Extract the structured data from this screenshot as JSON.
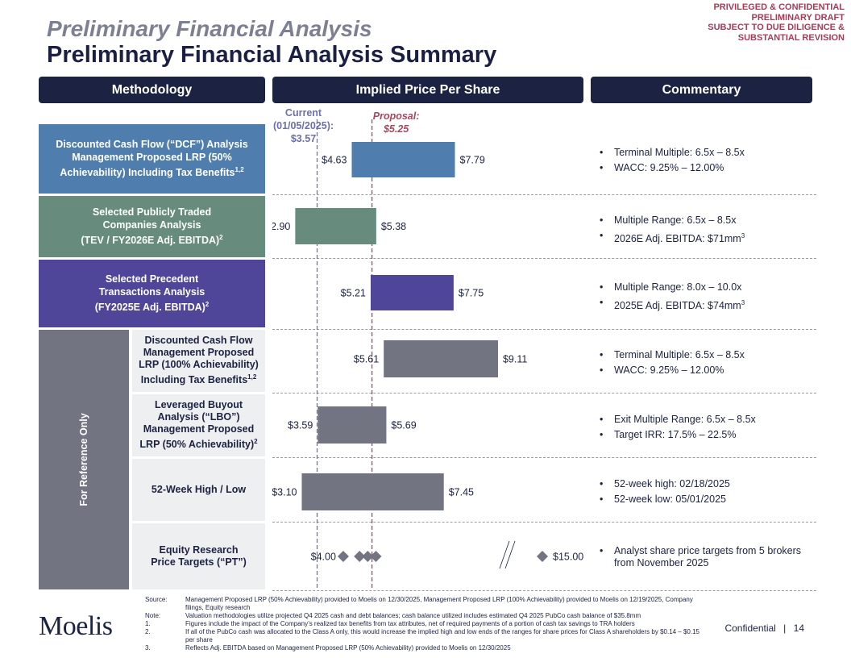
{
  "header": {
    "title_italic": "Preliminary Financial Analysis",
    "title_main": "Preliminary Financial Analysis Summary",
    "confidential": [
      "PRIVILEGED & CONFIDENTIAL",
      "PRELIMINARY DRAFT",
      "SUBJECT TO DUE DILIGENCE &",
      "SUBSTANTIAL REVISION"
    ]
  },
  "columns": {
    "methodology": "Methodology",
    "price": "Implied Price Per Share",
    "commentary": "Commentary"
  },
  "reference_label": "For Reference Only",
  "chart_data": {
    "type": "bar",
    "subtype": "football-field (floating horizontal bars)",
    "title": "Implied Price Per Share",
    "units": "$ per share",
    "xlim": [
      2.2,
      9.9
    ],
    "reference_lines": [
      {
        "name": "Current",
        "label": [
          "Current",
          "(01/05/2025):",
          "$3.57"
        ],
        "value": 3.57,
        "color": "#6d6fae"
      },
      {
        "name": "Proposal",
        "label": [
          "Proposal:",
          "$5.25"
        ],
        "value": 5.25,
        "color": "#a8465e"
      }
    ],
    "rows": [
      {
        "name": "DCF 50%",
        "low": 4.63,
        "high": 7.79,
        "low_label": "$4.63",
        "high_label": "$7.79",
        "color": "#4f7eae"
      },
      {
        "name": "Trading Comps",
        "low": 2.9,
        "high": 5.38,
        "low_label": "$2.90",
        "high_label": "$5.38",
        "color": "#678c7e"
      },
      {
        "name": "Precedent Transactions",
        "low": 5.21,
        "high": 7.75,
        "low_label": "$5.21",
        "high_label": "$7.75",
        "color": "#4f469a"
      },
      {
        "name": "DCF 100%",
        "low": 5.61,
        "high": 9.11,
        "low_label": "$5.61",
        "high_label": "$9.11",
        "color": "#727482"
      },
      {
        "name": "LBO",
        "low": 3.59,
        "high": 5.69,
        "low_label": "$3.59",
        "high_label": "$5.69",
        "color": "#727482"
      },
      {
        "name": "52-Week",
        "low": 3.1,
        "high": 7.45,
        "low_label": "$3.10",
        "high_label": "$7.45",
        "color": "#727482"
      }
    ],
    "price_targets": {
      "low": 4.0,
      "high": 15.0,
      "low_label": "$4.00",
      "high_label": "$15.00",
      "points": [
        4.0,
        4.5,
        4.75,
        5.0,
        15.0
      ],
      "color": "#727482",
      "axis_break": true
    }
  },
  "methodologies": [
    {
      "lines": [
        "Discounted Cash Flow (“DCF”) Analysis",
        "Management Proposed LRP (50%",
        "Achievability) Including Tax Benefits"
      ],
      "sup": "1,2",
      "color": "#4f7eae"
    },
    {
      "lines": [
        "Selected Publicly Traded",
        "Companies Analysis",
        "(TEV / FY2026E Adj. EBITDA)"
      ],
      "sup": "2",
      "color": "#678c7e"
    },
    {
      "lines": [
        "Selected Precedent",
        "Transactions Analysis",
        "(FY2025E Adj. EBITDA)"
      ],
      "sup": "2",
      "color": "#4f469a"
    }
  ],
  "sub_methodologies": [
    {
      "lines": [
        "Discounted Cash Flow",
        "Management Proposed",
        "LRP (100% Achievability)",
        "Including Tax Benefits"
      ],
      "sup": "1,2"
    },
    {
      "lines": [
        "Leveraged Buyout",
        "Analysis (“LBO”)",
        "Management Proposed",
        "LRP (50% Achievability)"
      ],
      "sup": "2"
    },
    {
      "lines": [
        "52-Week High / Low"
      ],
      "sup": ""
    },
    {
      "lines": [
        "Equity Research",
        "Price Targets (“PT”)"
      ],
      "sup": ""
    }
  ],
  "commentary": [
    {
      "items": [
        {
          "text": "Terminal Multiple: 6.5x – 8.5x",
          "sup": ""
        },
        {
          "text": "WACC: 9.25% – 12.00%",
          "sup": ""
        }
      ]
    },
    {
      "items": [
        {
          "text": "Multiple Range: 6.5x – 8.5x",
          "sup": ""
        },
        {
          "text": "2026E Adj. EBITDA: $71mm",
          "sup": "3"
        }
      ]
    },
    {
      "items": [
        {
          "text": "Multiple Range: 8.0x – 10.0x",
          "sup": ""
        },
        {
          "text": "2025E Adj. EBITDA: $74mm",
          "sup": "3"
        }
      ]
    },
    {
      "items": [
        {
          "text": "Terminal Multiple: 6.5x – 8.5x",
          "sup": ""
        },
        {
          "text": "WACC: 9.25% – 12.00%",
          "sup": ""
        }
      ]
    },
    {
      "items": [
        {
          "text": "Exit Multiple Range: 6.5x – 8.5x",
          "sup": ""
        },
        {
          "text": "Target IRR: 17.5% – 22.5%",
          "sup": ""
        }
      ]
    },
    {
      "items": [
        {
          "text": "52-week high: 02/18/2025",
          "sup": ""
        },
        {
          "text": "52-week low: 05/01/2025",
          "sup": ""
        }
      ]
    },
    {
      "items": [
        {
          "text": "Analyst share price targets from 5 brokers from November 2025",
          "sup": ""
        }
      ]
    }
  ],
  "footnotes": [
    {
      "key": "Source:",
      "text": "Management Proposed LRP (50% Achievability) provided to Moelis on 12/30/2025, Management Proposed LRP (100% Achievability) provided to Moelis on 12/19/2025, Company filings, Equity research"
    },
    {
      "key": "Note:",
      "text": "Valuation methodologies utilize projected Q4 2025 cash and debt balances; cash balance utilized includes estimated Q4 2025 PubCo cash balance of $35.8mm"
    },
    {
      "key": "1.",
      "text": "Figures include the impact of the Company’s realized tax benefits from tax attributes, net of required payments of a portion of cash tax savings to TRA holders"
    },
    {
      "key": "2.",
      "text": "If all of the PubCo cash was allocated to the Class A only, this would increase the implied high and low ends of the ranges for share prices for Class A shareholders by $0.14 – $0.15 per share"
    },
    {
      "key": "3.",
      "text": "Reflects Adj. EBITDA based on Management Proposed LRP (50% Achievability) provided to Moelis on 12/30/2025"
    }
  ],
  "logo": "Moelis",
  "page": {
    "label": "Confidential",
    "separator": "|",
    "number": "14"
  }
}
